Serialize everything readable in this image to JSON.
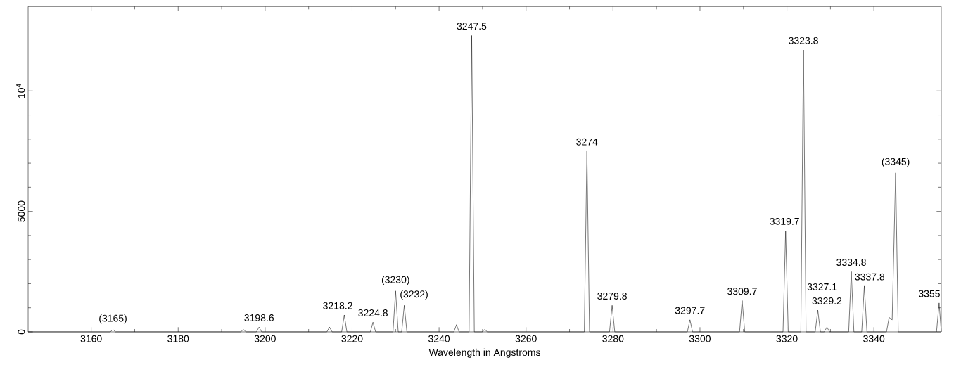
{
  "chart_data": {
    "type": "line",
    "xlabel": "Wavelength in Angstroms",
    "color": "#000000",
    "marker": "none",
    "line_style": "solid",
    "x": [
      3145.5,
      3164.4,
      3165,
      3165.6,
      3194.4,
      3195,
      3195.6,
      3198,
      3198.6,
      3199.2,
      3214.2,
      3214.8,
      3215.4,
      3217.6,
      3218.2,
      3218.8,
      3224.2,
      3224.8,
      3225.4,
      3229.4,
      3230,
      3230.6,
      3231.4,
      3232,
      3232.6,
      3243.4,
      3244,
      3244.6,
      3246.9,
      3247.5,
      3248.1,
      3249.9,
      3250.5,
      3251.1,
      3273.4,
      3274,
      3274.6,
      3279.2,
      3279.8,
      3280.4,
      3297.1,
      3297.7,
      3298.3,
      3309.1,
      3309.7,
      3310.3,
      3319.1,
      3319.7,
      3320.3,
      3323.2,
      3323.8,
      3324.4,
      3326.5,
      3327.1,
      3327.7,
      3328.6,
      3329.2,
      3329.8,
      3334.2,
      3334.8,
      3335.4,
      3337.2,
      3337.8,
      3338.4,
      3342.9,
      3343.5,
      3344.2,
      3345,
      3345.6,
      3354.4,
      3355,
      3355.5
    ],
    "values": [
      0,
      0,
      100,
      0,
      0,
      100,
      0,
      0,
      200,
      0,
      0,
      200,
      0,
      0,
      700,
      0,
      0,
      400,
      0,
      0,
      1700,
      0,
      0,
      1100,
      0,
      0,
      300,
      0,
      0,
      12300,
      0,
      0,
      100,
      0,
      0,
      7500,
      0,
      0,
      1100,
      0,
      0,
      500,
      0,
      0,
      1300,
      0,
      0,
      4200,
      0,
      0,
      11700,
      0,
      0,
      900,
      0,
      0,
      200,
      0,
      0,
      2500,
      0,
      0,
      1900,
      0,
      0,
      600,
      500,
      6600,
      0,
      0,
      1200,
      0
    ],
    "xlim": [
      3145.5,
      3355.5
    ],
    "ylim": [
      0,
      13500
    ],
    "xticks": [
      3160,
      3180,
      3200,
      3220,
      3240,
      3260,
      3280,
      3300,
      3320,
      3340
    ],
    "yticks": [
      0,
      5000,
      {
        "value": 10000,
        "label": "10$^{4}$"
      }
    ],
    "grid": false,
    "annotations": [
      {
        "text": "(3165)",
        "x": 3165,
        "y": 100
      },
      {
        "text": "3198.6",
        "x": 3198.6,
        "y": 200
      },
      {
        "text": "3218.2",
        "x": 3218.2,
        "y": 700
      },
      {
        "text": "3224.8",
        "x": 3224.8,
        "y": 400
      },
      {
        "text": "(3230)",
        "x": 3230,
        "y": 1700
      },
      {
        "text": "(3232)",
        "x": 3232,
        "y": 1100
      },
      {
        "text": "3247.5",
        "x": 3247.5,
        "y": 12300
      },
      {
        "text": "3274",
        "x": 3274,
        "y": 7500
      },
      {
        "text": "3279.8",
        "x": 3279.8,
        "y": 1100
      },
      {
        "text": "3297.7",
        "x": 3297.7,
        "y": 500
      },
      {
        "text": "3309.7",
        "x": 3309.7,
        "y": 1300
      },
      {
        "text": "3319.7",
        "x": 3319.7,
        "y": 4200
      },
      {
        "text": "3323.8",
        "x": 3323.8,
        "y": 11700
      },
      {
        "text": "3327.1",
        "x": 3327.1,
        "y": 900
      },
      {
        "text": "3329.2",
        "x": 3329.2,
        "y": 200
      },
      {
        "text": "3334.8",
        "x": 3334.8,
        "y": 2500
      },
      {
        "text": "3337.8",
        "x": 3337.8,
        "y": 1900
      },
      {
        "text": "(3345)",
        "x": 3345,
        "y": 6600
      },
      {
        "text": "3355",
        "x": 3355,
        "y": 1200
      }
    ]
  }
}
